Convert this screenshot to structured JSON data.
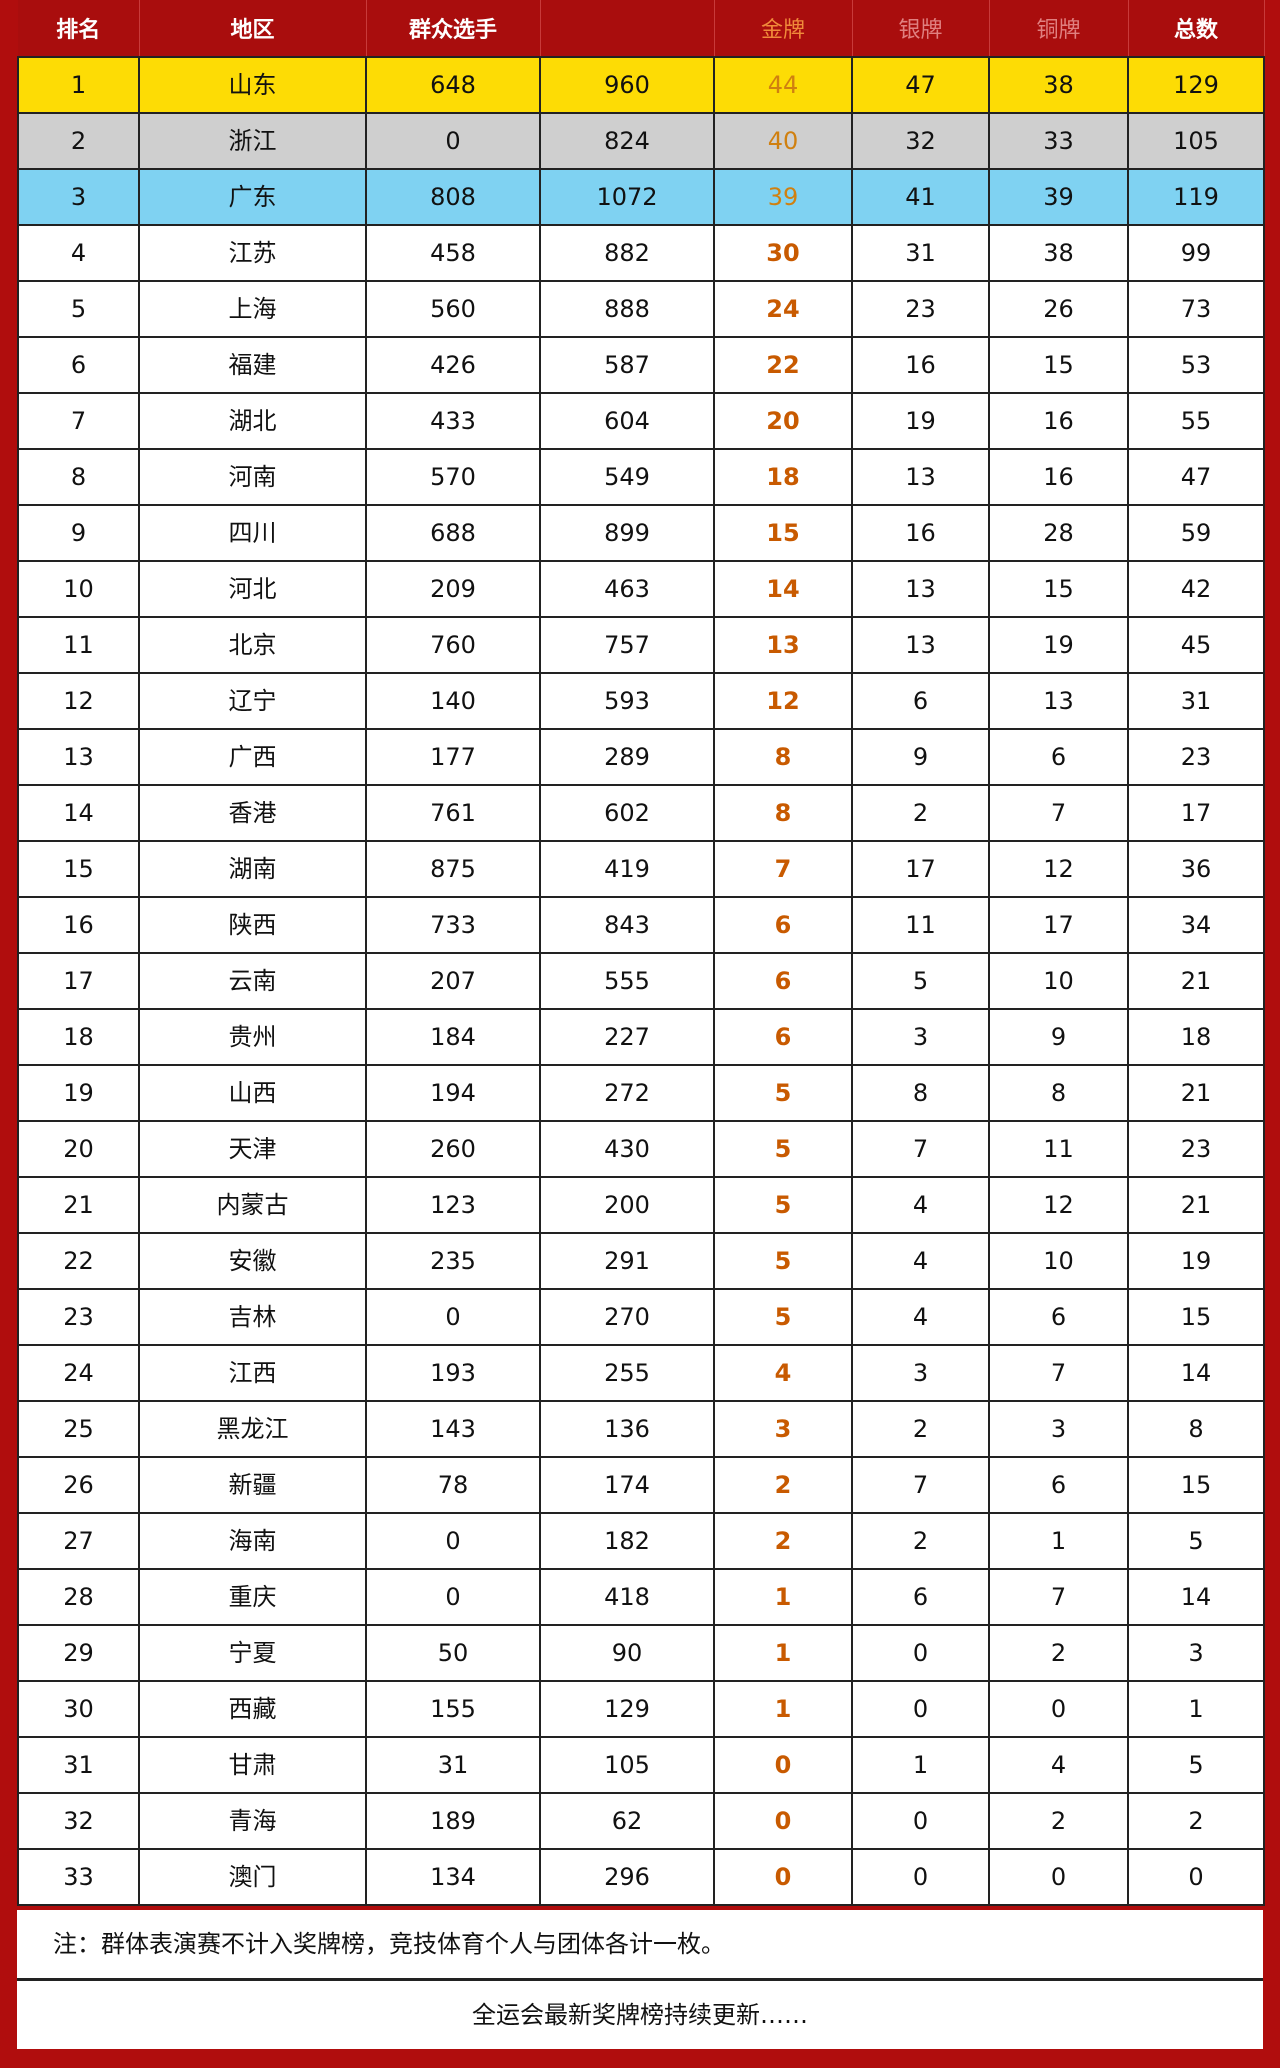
{
  "headers": [
    "排名",
    "地区",
    "群众选手",
    "",
    "金牌",
    "银牌",
    "铜牌",
    "总数"
  ],
  "rows": [
    [
      "1",
      "山东",
      "648",
      "960",
      "44",
      "47",
      "38",
      "129"
    ],
    [
      "2",
      "浙江",
      "0",
      "824",
      "40",
      "32",
      "33",
      "105"
    ],
    [
      "3",
      "广东",
      "808",
      "1072",
      "39",
      "41",
      "39",
      "119"
    ],
    [
      "4",
      "江苏",
      "458",
      "882",
      "30",
      "31",
      "38",
      "99"
    ],
    [
      "5",
      "上海",
      "560",
      "888",
      "24",
      "23",
      "26",
      "73"
    ],
    [
      "6",
      "福建",
      "426",
      "587",
      "22",
      "16",
      "15",
      "53"
    ],
    [
      "7",
      "湖北",
      "433",
      "604",
      "20",
      "19",
      "16",
      "55"
    ],
    [
      "8",
      "河南",
      "570",
      "549",
      "18",
      "13",
      "16",
      "47"
    ],
    [
      "9",
      "四川",
      "688",
      "899",
      "15",
      "16",
      "28",
      "59"
    ],
    [
      "10",
      "河北",
      "209",
      "463",
      "14",
      "13",
      "15",
      "42"
    ],
    [
      "11",
      "北京",
      "760",
      "757",
      "13",
      "13",
      "19",
      "45"
    ],
    [
      "12",
      "辽宁",
      "140",
      "593",
      "12",
      "6",
      "13",
      "31"
    ],
    [
      "13",
      "广西",
      "177",
      "289",
      "8",
      "9",
      "6",
      "23"
    ],
    [
      "14",
      "香港",
      "761",
      "602",
      "8",
      "2",
      "7",
      "17"
    ],
    [
      "15",
      "湖南",
      "875",
      "419",
      "7",
      "17",
      "12",
      "36"
    ],
    [
      "16",
      "陕西",
      "733",
      "843",
      "6",
      "11",
      "17",
      "34"
    ],
    [
      "17",
      "云南",
      "207",
      "555",
      "6",
      "5",
      "10",
      "21"
    ],
    [
      "18",
      "贵州",
      "184",
      "227",
      "6",
      "3",
      "9",
      "18"
    ],
    [
      "19",
      "山西",
      "194",
      "272",
      "5",
      "8",
      "8",
      "21"
    ],
    [
      "20",
      "天津",
      "260",
      "430",
      "5",
      "7",
      "11",
      "23"
    ],
    [
      "21",
      "内蒙古",
      "123",
      "200",
      "5",
      "4",
      "12",
      "21"
    ],
    [
      "22",
      "安徽",
      "235",
      "291",
      "5",
      "4",
      "10",
      "19"
    ],
    [
      "23",
      "吉林",
      "0",
      "270",
      "5",
      "4",
      "6",
      "15"
    ],
    [
      "24",
      "江西",
      "193",
      "255",
      "4",
      "3",
      "7",
      "14"
    ],
    [
      "25",
      "黑龙江",
      "143",
      "136",
      "3",
      "2",
      "3",
      "8"
    ],
    [
      "26",
      "新疆",
      "78",
      "174",
      "2",
      "7",
      "6",
      "15"
    ],
    [
      "27",
      "海南",
      "0",
      "182",
      "2",
      "2",
      "1",
      "5"
    ],
    [
      "28",
      "重庆",
      "0",
      "418",
      "1",
      "6",
      "7",
      "14"
    ],
    [
      "29",
      "宁夏",
      "50",
      "90",
      "1",
      "0",
      "2",
      "3"
    ],
    [
      "30",
      "西藏",
      "155",
      "129",
      "1",
      "0",
      "0",
      "1"
    ],
    [
      "31",
      "甘肃",
      "31",
      "105",
      "0",
      "1",
      "4",
      "5"
    ],
    [
      "32",
      "青海",
      "189",
      "62",
      "0",
      "0",
      "2",
      "2"
    ],
    [
      "33",
      "澳门",
      "134",
      "296",
      "0",
      "0",
      "0",
      "0"
    ]
  ],
  "note": "注：群体表演赛不计入奖牌榜，竞技体育个人与团体各计一枚。",
  "footer": "全运会最新奖牌榜持续更新……",
  "colors": {
    "header_bg": "#a90d0d",
    "first": "#fddc05",
    "second": "#cfcfcf",
    "third": "#7fd2f2",
    "gold_text": "#c85a00"
  }
}
